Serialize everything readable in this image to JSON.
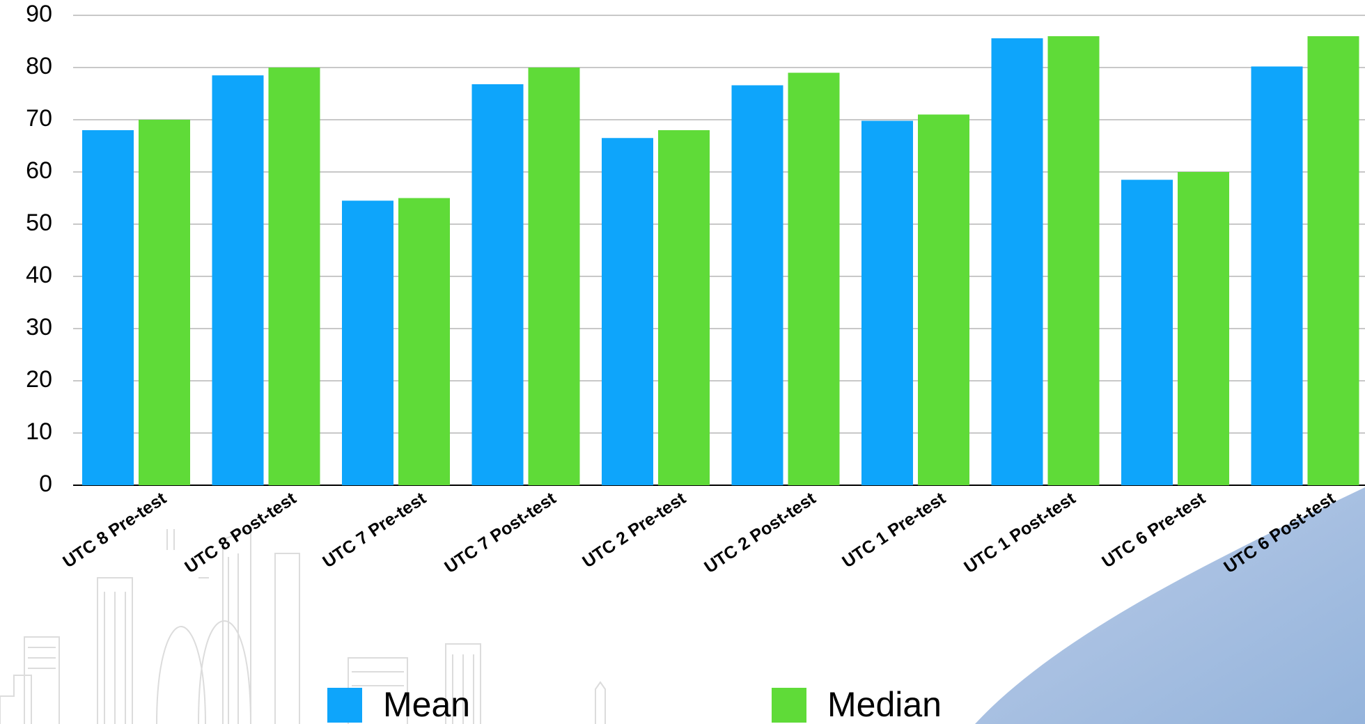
{
  "chart_data": {
    "type": "bar",
    "title": "",
    "xlabel": "",
    "ylabel": "",
    "ylim": [
      0,
      90
    ],
    "yticks": [
      0,
      10,
      20,
      30,
      40,
      50,
      60,
      70,
      80,
      90
    ],
    "grid": true,
    "legend_position": "bottom",
    "categories": [
      "UTC 8 Pre-test",
      "UTC 8 Post-test",
      "UTC 7 Pre-test",
      "UTC 7 Post-test",
      "UTC 2 Pre-test",
      "UTC 2 Post-test",
      "UTC 1 Pre-test",
      "UTC 1 Post-test",
      "UTC 6 Pre-test",
      "UTC 6 Post-test"
    ],
    "series": [
      {
        "name": "Mean",
        "color": "#0ea5fb",
        "values": [
          68,
          78.5,
          54.5,
          76.8,
          66.5,
          76.6,
          69.8,
          85.6,
          58.5,
          80.2
        ]
      },
      {
        "name": "Median",
        "color": "#5fdb38",
        "values": [
          70,
          80,
          55,
          80,
          68,
          79,
          71,
          86,
          60,
          86
        ]
      }
    ]
  },
  "legend": {
    "mean_label": "Mean",
    "median_label": "Median"
  }
}
